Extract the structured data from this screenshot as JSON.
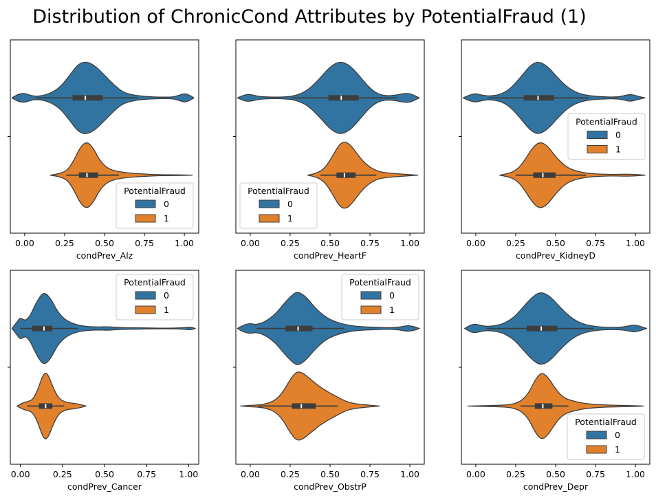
{
  "figure": {
    "title": "Distribution of ChronicCond Attributes by PotentialFraud (1)"
  },
  "colors": {
    "class0": "#3274a1",
    "class1": "#e1812c",
    "outline": "#3d3d3d",
    "box": "#3d3d3d",
    "median": "#ffffff"
  },
  "chart_data": [
    {
      "type": "violin",
      "xlabel": "condPrev_Alz",
      "xlim": [
        -0.09,
        1.09
      ],
      "xticks": [
        "0.00",
        "0.25",
        "0.50",
        "0.75",
        "1.00"
      ],
      "legend": {
        "title": "PotentialFraud",
        "entries": [
          "0",
          "1"
        ],
        "placement": "lower-right"
      },
      "series": [
        {
          "name": "0",
          "min": -0.08,
          "q1": 0.3,
          "median": 0.38,
          "q3": 0.49,
          "max": 1.06,
          "whisker_low": 0.07,
          "whisker_high": 0.71,
          "density_x": [
            -0.08,
            -0.04,
            0.0,
            0.04,
            0.08,
            0.15,
            0.22,
            0.28,
            0.33,
            0.38,
            0.44,
            0.5,
            0.56,
            0.62,
            0.7,
            0.78,
            0.86,
            0.92,
            0.96,
            1.0,
            1.03,
            1.06
          ],
          "density_w": [
            0.0,
            0.1,
            0.13,
            0.06,
            0.04,
            0.1,
            0.28,
            0.6,
            0.9,
            1.0,
            0.88,
            0.62,
            0.35,
            0.14,
            0.06,
            0.03,
            0.02,
            0.02,
            0.06,
            0.12,
            0.08,
            0.0
          ]
        },
        {
          "name": "1",
          "min": 0.16,
          "q1": 0.34,
          "median": 0.39,
          "q3": 0.46,
          "max": 1.05,
          "whisker_low": 0.26,
          "whisker_high": 0.59,
          "density_x": [
            0.16,
            0.22,
            0.27,
            0.31,
            0.35,
            0.39,
            0.43,
            0.47,
            0.52,
            0.58,
            0.65,
            0.72,
            0.8,
            0.88,
            0.96,
            1.05
          ],
          "density_w": [
            0.0,
            0.04,
            0.14,
            0.42,
            0.78,
            0.92,
            0.74,
            0.4,
            0.18,
            0.1,
            0.06,
            0.04,
            0.02,
            0.01,
            0.01,
            0.0
          ]
        }
      ]
    },
    {
      "type": "violin",
      "xlabel": "condPrev_HeartF",
      "xlim": [
        -0.09,
        1.09
      ],
      "xticks": [
        "0.00",
        "0.25",
        "0.50",
        "0.75",
        "1.00"
      ],
      "legend": {
        "title": "PotentialFraud",
        "entries": [
          "0",
          "1"
        ],
        "placement": "lower-left"
      },
      "series": [
        {
          "name": "0",
          "min": -0.08,
          "q1": 0.49,
          "median": 0.57,
          "q3": 0.68,
          "max": 1.06,
          "whisker_low": 0.26,
          "whisker_high": 0.92,
          "density_x": [
            -0.08,
            -0.04,
            0.0,
            0.05,
            0.12,
            0.2,
            0.28,
            0.36,
            0.44,
            0.5,
            0.56,
            0.62,
            0.68,
            0.74,
            0.8,
            0.86,
            0.92,
            0.96,
            1.0,
            1.03,
            1.06
          ],
          "density_w": [
            0.0,
            0.08,
            0.1,
            0.04,
            0.02,
            0.02,
            0.05,
            0.2,
            0.55,
            0.85,
            1.0,
            0.9,
            0.62,
            0.3,
            0.1,
            0.05,
            0.08,
            0.12,
            0.12,
            0.06,
            0.0
          ]
        },
        {
          "name": "1",
          "min": 0.36,
          "q1": 0.54,
          "median": 0.59,
          "q3": 0.66,
          "max": 1.05,
          "whisker_low": 0.44,
          "whisker_high": 0.79,
          "density_x": [
            0.36,
            0.42,
            0.47,
            0.52,
            0.56,
            0.6,
            0.64,
            0.69,
            0.74,
            0.8,
            0.86,
            0.92,
            0.98,
            1.05
          ],
          "density_w": [
            0.0,
            0.06,
            0.2,
            0.55,
            0.86,
            0.92,
            0.76,
            0.46,
            0.24,
            0.1,
            0.06,
            0.04,
            0.02,
            0.0
          ]
        }
      ]
    },
    {
      "type": "violin",
      "xlabel": "condPrev_KidneyD",
      "xlim": [
        -0.09,
        1.09
      ],
      "xticks": [
        "0.00",
        "0.25",
        "0.50",
        "0.75",
        "1.00"
      ],
      "legend": {
        "title": "PotentialFraud",
        "entries": [
          "0",
          "1"
        ],
        "placement": "center-right"
      },
      "series": [
        {
          "name": "0",
          "min": -0.08,
          "q1": 0.3,
          "median": 0.39,
          "q3": 0.49,
          "max": 1.06,
          "whisker_low": 0.08,
          "whisker_high": 0.71,
          "density_x": [
            -0.08,
            -0.04,
            0.0,
            0.05,
            0.1,
            0.16,
            0.22,
            0.28,
            0.34,
            0.39,
            0.45,
            0.51,
            0.57,
            0.64,
            0.72,
            0.8,
            0.88,
            0.93,
            0.97,
            1.01,
            1.06
          ],
          "density_w": [
            0.0,
            0.08,
            0.12,
            0.06,
            0.05,
            0.1,
            0.26,
            0.56,
            0.88,
            1.0,
            0.86,
            0.56,
            0.3,
            0.12,
            0.05,
            0.03,
            0.02,
            0.06,
            0.1,
            0.05,
            0.0
          ]
        },
        {
          "name": "1",
          "min": 0.15,
          "q1": 0.36,
          "median": 0.42,
          "q3": 0.5,
          "max": 1.06,
          "whisker_low": 0.25,
          "whisker_high": 0.69,
          "density_x": [
            0.15,
            0.2,
            0.25,
            0.3,
            0.35,
            0.4,
            0.45,
            0.5,
            0.56,
            0.62,
            0.7,
            0.78,
            0.86,
            0.94,
            1.0,
            1.06
          ],
          "density_w": [
            0.0,
            0.04,
            0.12,
            0.36,
            0.72,
            0.92,
            0.8,
            0.5,
            0.24,
            0.12,
            0.05,
            0.03,
            0.02,
            0.03,
            0.02,
            0.0
          ]
        }
      ]
    },
    {
      "type": "violin",
      "xlabel": "condPrev_Cancer",
      "xlim": [
        -0.06,
        1.06
      ],
      "xticks": [
        "0.00",
        "0.25",
        "0.50",
        "0.75",
        "1.00"
      ],
      "legend": {
        "title": "PotentialFraud",
        "entries": [
          "0",
          "1"
        ],
        "placement": "upper-right"
      },
      "series": [
        {
          "name": "0",
          "min": -0.05,
          "q1": 0.07,
          "median": 0.14,
          "q3": 0.19,
          "max": 1.04,
          "whisker_low": 0.0,
          "whisker_high": 0.34,
          "density_x": [
            -0.05,
            -0.02,
            0.0,
            0.03,
            0.06,
            0.1,
            0.14,
            0.18,
            0.22,
            0.27,
            0.33,
            0.4,
            0.47,
            0.52,
            0.6,
            0.7,
            0.8,
            0.9,
            0.97,
            1.01,
            1.04
          ],
          "density_w": [
            0.0,
            0.18,
            0.3,
            0.2,
            0.36,
            0.76,
            1.0,
            0.82,
            0.46,
            0.22,
            0.1,
            0.05,
            0.04,
            0.05,
            0.02,
            0.02,
            0.01,
            0.01,
            0.02,
            0.04,
            0.0
          ]
        },
        {
          "name": "1",
          "min": -0.02,
          "q1": 0.11,
          "median": 0.15,
          "q3": 0.19,
          "max": 0.39,
          "whisker_low": 0.04,
          "whisker_high": 0.26,
          "density_x": [
            -0.02,
            0.01,
            0.04,
            0.07,
            0.1,
            0.13,
            0.15,
            0.17,
            0.2,
            0.23,
            0.27,
            0.31,
            0.35,
            0.39
          ],
          "density_w": [
            0.0,
            0.08,
            0.12,
            0.16,
            0.4,
            0.8,
            0.92,
            0.8,
            0.44,
            0.2,
            0.1,
            0.08,
            0.05,
            0.0
          ]
        }
      ]
    },
    {
      "type": "violin",
      "xlabel": "condPrev_ObstrP",
      "xlim": [
        -0.09,
        1.09
      ],
      "xticks": [
        "0.00",
        "0.25",
        "0.50",
        "0.75",
        "1.00"
      ],
      "legend": {
        "title": "PotentialFraud",
        "entries": [
          "0",
          "1"
        ],
        "placement": "upper-right"
      },
      "series": [
        {
          "name": "0",
          "min": -0.08,
          "q1": 0.22,
          "median": 0.3,
          "q3": 0.39,
          "max": 1.06,
          "whisker_low": 0.04,
          "whisker_high": 0.59,
          "density_x": [
            -0.08,
            -0.04,
            0.0,
            0.04,
            0.1,
            0.16,
            0.22,
            0.27,
            0.3,
            0.35,
            0.41,
            0.48,
            0.56,
            0.64,
            0.72,
            0.8,
            0.88,
            0.94,
            0.98,
            1.02,
            1.06
          ],
          "density_w": [
            0.0,
            0.1,
            0.14,
            0.1,
            0.2,
            0.4,
            0.72,
            0.94,
            1.0,
            0.86,
            0.54,
            0.28,
            0.14,
            0.07,
            0.04,
            0.03,
            0.02,
            0.04,
            0.08,
            0.06,
            0.0
          ]
        },
        {
          "name": "1",
          "min": -0.06,
          "q1": 0.26,
          "median": 0.32,
          "q3": 0.41,
          "max": 0.81,
          "whisker_low": 0.05,
          "whisker_high": 0.55,
          "density_x": [
            -0.06,
            0.0,
            0.05,
            0.1,
            0.15,
            0.2,
            0.25,
            0.29,
            0.33,
            0.38,
            0.43,
            0.48,
            0.54,
            0.6,
            0.66,
            0.73,
            0.81
          ],
          "density_w": [
            0.0,
            0.02,
            0.03,
            0.06,
            0.14,
            0.34,
            0.72,
            0.94,
            0.9,
            0.72,
            0.54,
            0.4,
            0.26,
            0.12,
            0.06,
            0.03,
            0.0
          ]
        }
      ]
    },
    {
      "type": "violin",
      "xlabel": "condPrev_Depr",
      "xlim": [
        -0.09,
        1.09
      ],
      "xticks": [
        "0.00",
        "0.25",
        "0.50",
        "0.75",
        "1.00"
      ],
      "legend": {
        "title": "PotentialFraud",
        "entries": [
          "0",
          "1"
        ],
        "placement": "lower-right"
      },
      "series": [
        {
          "name": "0",
          "min": -0.07,
          "q1": 0.32,
          "median": 0.41,
          "q3": 0.51,
          "max": 1.07,
          "whisker_low": 0.07,
          "whisker_high": 0.74,
          "density_x": [
            -0.07,
            -0.03,
            0.0,
            0.05,
            0.1,
            0.17,
            0.24,
            0.3,
            0.36,
            0.41,
            0.47,
            0.53,
            0.6,
            0.67,
            0.75,
            0.83,
            0.9,
            0.95,
            0.99,
            1.03,
            1.07
          ],
          "density_w": [
            0.0,
            0.1,
            0.12,
            0.06,
            0.06,
            0.12,
            0.3,
            0.6,
            0.88,
            1.0,
            0.86,
            0.56,
            0.28,
            0.12,
            0.05,
            0.03,
            0.03,
            0.06,
            0.1,
            0.06,
            0.0
          ]
        },
        {
          "name": "1",
          "min": -0.05,
          "q1": 0.37,
          "median": 0.42,
          "q3": 0.48,
          "max": 1.05,
          "whisker_low": 0.28,
          "whisker_high": 0.58,
          "density_x": [
            -0.05,
            0.05,
            0.15,
            0.22,
            0.28,
            0.33,
            0.37,
            0.41,
            0.45,
            0.5,
            0.55,
            0.62,
            0.7,
            0.8,
            0.9,
            1.0,
            1.05
          ],
          "density_w": [
            0.0,
            0.01,
            0.02,
            0.04,
            0.12,
            0.34,
            0.7,
            0.92,
            0.8,
            0.46,
            0.22,
            0.12,
            0.06,
            0.03,
            0.02,
            0.01,
            0.0
          ]
        }
      ]
    }
  ]
}
